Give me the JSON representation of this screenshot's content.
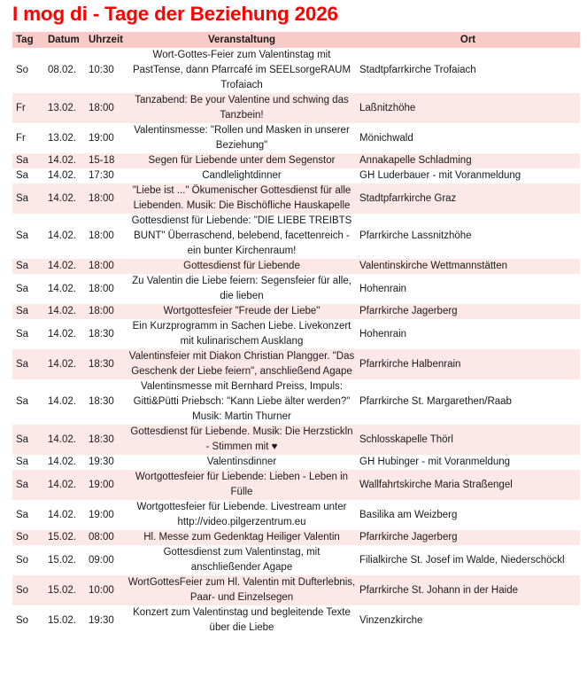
{
  "page": {
    "title": "I mog di - Tage der Beziehung 2026"
  },
  "colors": {
    "title": "#ff0000",
    "header_bg": "#f8cbc9",
    "row_alt_bg": "#fce8e6",
    "text": "#1a1a1a"
  },
  "table": {
    "headers": [
      "Tag",
      "Datum",
      "Uhrzeit",
      "Veranstaltung",
      "Ort"
    ],
    "rows": [
      {
        "tag": "So",
        "datum": "08.02.",
        "uhrzeit": "10:30",
        "veranstaltung": "Wort-Gottes-Feier zum Valentinstag mit PastTense, dann Pfarrcafé im SEELsorgeRAUM Trofaiach",
        "ort": "Stadtpfarrkirche Trofaiach"
      },
      {
        "tag": "Fr",
        "datum": "13.02.",
        "uhrzeit": "18:00",
        "veranstaltung": "Tanzabend: Be your Valentine und schwing das Tanzbein!",
        "ort": "Laßnitzhöhe"
      },
      {
        "tag": "Fr",
        "datum": "13.02.",
        "uhrzeit": "19:00",
        "veranstaltung": "Valentinsmesse: \"Rollen und Masken in unserer Beziehung\"",
        "ort": "Mönichwald"
      },
      {
        "tag": "Sa",
        "datum": "14.02.",
        "uhrzeit": "15-18",
        "veranstaltung": "Segen für Liebende unter dem Segenstor",
        "ort": "Annakapelle Schladming"
      },
      {
        "tag": "Sa",
        "datum": "14.02.",
        "uhrzeit": "17:30",
        "veranstaltung": "Candlelightdinner",
        "ort": "GH Luderbauer - mit Voranmeldung"
      },
      {
        "tag": "Sa",
        "datum": "14.02.",
        "uhrzeit": "18:00",
        "veranstaltung": "\"Liebe ist ...\" Ökumenischer Gottesdienst für alle Liebenden. Musik: Die Bischöfliche Hauskapelle",
        "ort": "Stadtpfarrkirche Graz"
      },
      {
        "tag": "Sa",
        "datum": "14.02.",
        "uhrzeit": "18:00",
        "veranstaltung": "Gottesdienst für Liebende: \"DIE LIEBE TREIBTS BUNT\" Überraschend, belebend, facettenreich - ein bunter Kirchenraum!",
        "ort": "Pfarrkirche Lassnitzhöhe"
      },
      {
        "tag": "Sa",
        "datum": "14.02.",
        "uhrzeit": "18:00",
        "veranstaltung": "Gottesdienst für Liebende",
        "ort": "Valentinskirche Wettmannstätten"
      },
      {
        "tag": "Sa",
        "datum": "14.02.",
        "uhrzeit": "18:00",
        "veranstaltung": "Zu Valentin die Liebe feiern: Segensfeier für alle, die lieben",
        "ort": "Hohenrain"
      },
      {
        "tag": "Sa",
        "datum": "14.02.",
        "uhrzeit": "18:00",
        "veranstaltung": "Wortgottesfeier \"Freude der Liebe\"",
        "ort": "Pfarrkirche Jagerberg"
      },
      {
        "tag": "Sa",
        "datum": "14.02.",
        "uhrzeit": "18:30",
        "veranstaltung": "Ein Kurzprogramm in Sachen Liebe. Livekonzert mit kulinarischem Ausklang",
        "ort": "Hohenrain"
      },
      {
        "tag": "Sa",
        "datum": "14.02.",
        "uhrzeit": "18:30",
        "veranstaltung": "Valentinsfeier mit Diakon Christian Plangger. \"Das Geschenk der Liebe feiern\", anschließend Agape",
        "ort": "Pfarrkirche Halbenrain"
      },
      {
        "tag": "Sa",
        "datum": "14.02.",
        "uhrzeit": "18:30",
        "veranstaltung": "Valentinsmesse mit Bernhard Preiss, Impuls: Gitti&Pütti Priebsch: \"Kann Liebe älter werden?\" Musik: Martin Thurner",
        "ort": "Pfarrkirche St. Margarethen/Raab"
      },
      {
        "tag": "Sa",
        "datum": "14.02.",
        "uhrzeit": "18:30",
        "veranstaltung": "Gottesdienst für Liebende. Musik: Die Herzstickln - Stimmen mit ♥",
        "ort": "Schlosskapelle Thörl"
      },
      {
        "tag": "Sa",
        "datum": "14.02.",
        "uhrzeit": "19:30",
        "veranstaltung": "Valentinsdinner",
        "ort": "GH Hubinger - mit Voranmeldung"
      },
      {
        "tag": "Sa",
        "datum": "14.02.",
        "uhrzeit": "19:00",
        "veranstaltung": "Wortgottesfeier für Liebende: Lieben - Leben in Fülle",
        "ort": "Wallfahrtskirche Maria Straßengel"
      },
      {
        "tag": "Sa",
        "datum": "14.02.",
        "uhrzeit": "19:00",
        "veranstaltung": "Wortgottesfeier für Liebende. Livestream unter http://video.pilgerzentrum.eu",
        "ort": "Basilika am Weizberg"
      },
      {
        "tag": "So",
        "datum": "15.02.",
        "uhrzeit": "08:00",
        "veranstaltung": "Hl. Messe zum Gedenktag Heiliger Valentin",
        "ort": "Pfarrkirche Jagerberg"
      },
      {
        "tag": "So",
        "datum": "15.02.",
        "uhrzeit": "09:00",
        "veranstaltung": "Gottesdienst zum Valentinstag, mit anschließender Agape",
        "ort": "Filialkirche St. Josef im Walde, Niederschöckl"
      },
      {
        "tag": "So",
        "datum": "15.02.",
        "uhrzeit": "10:00",
        "veranstaltung": "WortGottesFeier zum Hl. Valentin mit Dufterlebnis, Paar- und Einzelsegen",
        "ort": "Pfarrkirche St. Johann in der Haide"
      },
      {
        "tag": "So",
        "datum": "15.02.",
        "uhrzeit": "19:30",
        "veranstaltung": "Konzert zum Valentinstag und begleitende Texte über die Liebe",
        "ort": "Vinzenzkirche"
      }
    ]
  }
}
